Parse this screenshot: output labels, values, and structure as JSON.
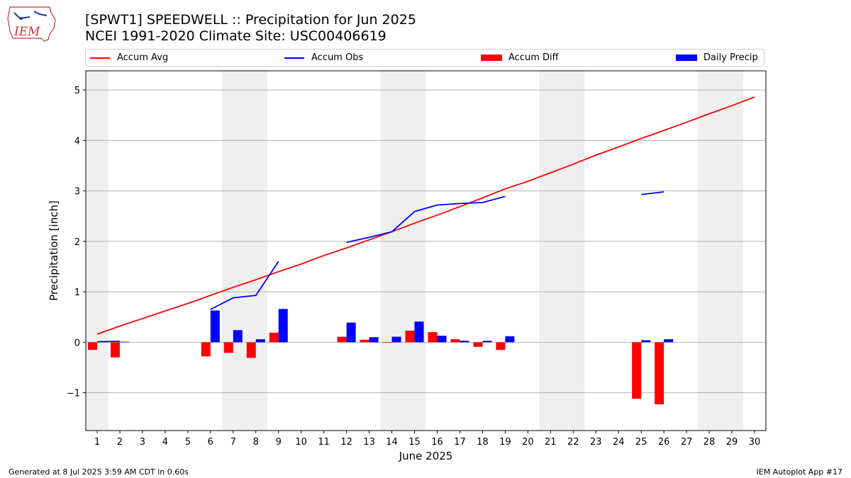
{
  "header": {
    "title": "[SPWT1] SPEEDWELL :: Precipitation for Jun 2025",
    "subtitle": "NCEI 1991-2020 Climate Site: USC00406619"
  },
  "logo": {
    "text": "IEM"
  },
  "legend": {
    "placement": "top, above plot",
    "items": [
      {
        "label": "Accum Avg",
        "kind": "line",
        "color": "#ff0000"
      },
      {
        "label": "Accum Obs",
        "kind": "line",
        "color": "#0000ff"
      },
      {
        "label": "Accum Diff",
        "kind": "bar",
        "color": "#ff0000"
      },
      {
        "label": "Daily Precip",
        "kind": "bar",
        "color": "#0000ff"
      }
    ]
  },
  "footer": {
    "left": "Generated at 8 Jul 2025 3:59 AM CDT in 0.60s",
    "right": "IEM Autoplot App #17"
  },
  "chart_data": {
    "type": "bar",
    "xlabel": "June 2025",
    "ylabel": "Precipitation [inch]",
    "xlim": [
      0.5,
      30.5
    ],
    "ylim": [
      -1.75,
      5.38
    ],
    "yticks": [
      -1,
      0,
      1,
      2,
      3,
      4,
      5
    ],
    "ytick_labels": [
      "−1",
      "0",
      "1",
      "2",
      "3",
      "4",
      "5"
    ],
    "grid": "horizontal",
    "x": [
      1,
      2,
      3,
      4,
      5,
      6,
      7,
      8,
      9,
      10,
      11,
      12,
      13,
      14,
      15,
      16,
      17,
      18,
      19,
      20,
      21,
      22,
      23,
      24,
      25,
      26,
      27,
      28,
      29,
      30
    ],
    "weekend_shading": [
      [
        0.5,
        1.5
      ],
      [
        6.5,
        8.5
      ],
      [
        13.5,
        15.5
      ],
      [
        20.5,
        22.5
      ],
      [
        27.5,
        29.5
      ]
    ],
    "series": [
      {
        "name": "Accum Avg",
        "kind": "line",
        "color": "#ff0000",
        "values": [
          0.16,
          0.32,
          0.47,
          0.62,
          0.77,
          0.93,
          1.09,
          1.24,
          1.4,
          1.55,
          1.72,
          1.87,
          2.03,
          2.19,
          2.36,
          2.52,
          2.69,
          2.86,
          3.04,
          3.19,
          3.36,
          3.53,
          3.71,
          3.87,
          4.04,
          4.2,
          4.36,
          4.53,
          4.69,
          4.86
        ]
      },
      {
        "name": "Accum Obs",
        "kind": "line",
        "color": "#0000ff",
        "values": [
          0.01,
          0.02,
          null,
          null,
          null,
          0.65,
          0.88,
          0.93,
          1.6,
          null,
          null,
          1.98,
          2.08,
          2.19,
          2.59,
          2.72,
          2.75,
          2.77,
          2.89,
          null,
          null,
          null,
          null,
          null,
          2.93,
          2.98,
          null,
          null,
          null,
          null
        ]
      },
      {
        "name": "Accum Diff",
        "kind": "bar",
        "color": "#ff0000",
        "values": [
          -0.15,
          -0.3,
          null,
          null,
          null,
          -0.28,
          -0.21,
          -0.31,
          0.19,
          null,
          null,
          0.11,
          0.05,
          -0.01,
          0.23,
          0.2,
          0.06,
          -0.09,
          -0.15,
          null,
          null,
          null,
          null,
          null,
          -1.12,
          -1.23,
          null,
          null,
          null,
          null
        ]
      },
      {
        "name": "Daily Precip",
        "kind": "bar",
        "color": "#0000ff",
        "values": [
          0.01,
          0.01,
          null,
          null,
          null,
          0.63,
          0.24,
          0.06,
          0.66,
          null,
          null,
          0.39,
          0.1,
          0.11,
          0.41,
          0.13,
          0.03,
          0.03,
          0.12,
          null,
          null,
          null,
          null,
          null,
          0.04,
          0.06,
          null,
          null,
          null,
          null
        ]
      }
    ]
  }
}
